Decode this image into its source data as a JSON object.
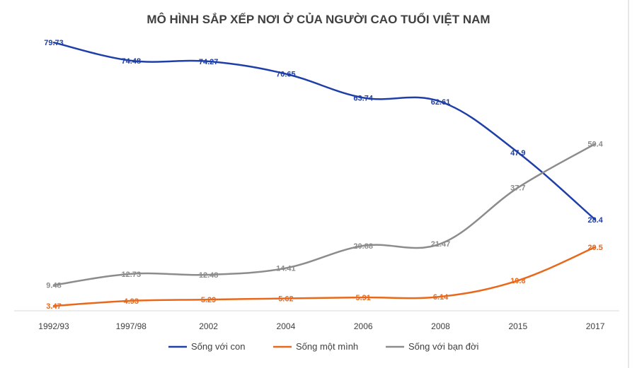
{
  "chart_data": {
    "type": "line",
    "title": "MÔ HÌNH SẮP XẾP NƠI Ở CỦA NGƯỜI CAO TUỔI VIỆT NAM",
    "xlabel": "",
    "ylabel": "",
    "categories": [
      "1992/93",
      "1997/98",
      "2002",
      "2004",
      "2006",
      "2008",
      "2015",
      "2017"
    ],
    "ylim": [
      0,
      90
    ],
    "grid": false,
    "legend_position": "bottom",
    "series": [
      {
        "name": "Sống với con",
        "color": "#1f3fa8",
        "values": [
          79.73,
          74.48,
          74.27,
          70.65,
          63.74,
          62.61,
          47.9,
          28.4
        ],
        "labels": [
          "79.73",
          "74.48",
          "74.27",
          "70.65",
          "63.74",
          "62.61",
          "47.9",
          "28.4"
        ]
      },
      {
        "name": "Sống một mình",
        "color": "#e8681c",
        "values": [
          3.47,
          4.93,
          5.29,
          5.62,
          5.91,
          6.14,
          10.8,
          20.5
        ],
        "labels": [
          "3.47",
          "4.93",
          "5.29",
          "5.62",
          "5.91",
          "6.14",
          "10.8",
          "20.5"
        ]
      },
      {
        "name": "Sống với bạn đời",
        "color": "#8c8c8c",
        "values": [
          9.48,
          12.73,
          12.48,
          14.41,
          20.88,
          21.47,
          37.7,
          50.4
        ],
        "labels": [
          "9.48",
          "12.73",
          "12.48",
          "14.41",
          "20.88",
          "21.47",
          "37.7",
          "50.4"
        ]
      }
    ]
  }
}
